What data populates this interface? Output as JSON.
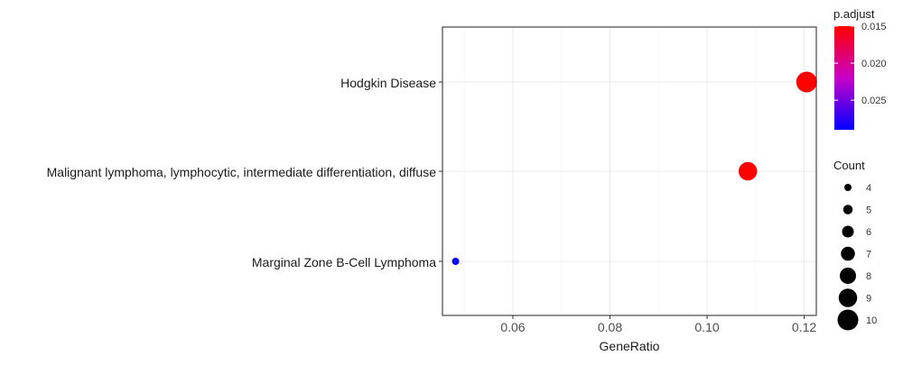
{
  "chart_data": {
    "type": "scatter",
    "xlabel": "GeneRatio",
    "ylabel": "",
    "xlim": [
      0.0455,
      0.1225
    ],
    "x_ticks": [
      0.06,
      0.08,
      0.1,
      0.12
    ],
    "x_tick_labels": [
      "0.06",
      "0.08",
      "0.10",
      "0.12"
    ],
    "grid": true,
    "legend_position": "right",
    "categories": [
      "Hodgkin Disease",
      "Malignant lymphoma, lymphocytic, intermediate differentiation, diffuse",
      "Marginal Zone B-Cell Lymphoma"
    ],
    "points": [
      {
        "term": "Hodgkin Disease",
        "gene_ratio": 0.1205,
        "p_adjust": 0.015,
        "count": 10
      },
      {
        "term": "Malignant lymphoma, lymphocytic, intermediate differentiation, diffuse",
        "gene_ratio": 0.1084,
        "p_adjust": 0.015,
        "count": 9
      },
      {
        "term": "Marginal Zone B-Cell Lymphoma",
        "gene_ratio": 0.0482,
        "p_adjust": 0.029,
        "count": 4
      }
    ],
    "color_legend": {
      "title": "p.adjust",
      "range": [
        0.015,
        0.029
      ],
      "ticks": [
        0.015,
        0.02,
        0.025
      ],
      "tick_labels": [
        "0.015",
        "0.020",
        "0.025"
      ],
      "low_color": "#ff0000",
      "high_color": "#0000ff"
    },
    "size_legend": {
      "title": "Count",
      "values": [
        4,
        5,
        6,
        7,
        8,
        9,
        10
      ],
      "labels": [
        "4",
        "5",
        "6",
        "7",
        "8",
        "9",
        "10"
      ]
    }
  }
}
